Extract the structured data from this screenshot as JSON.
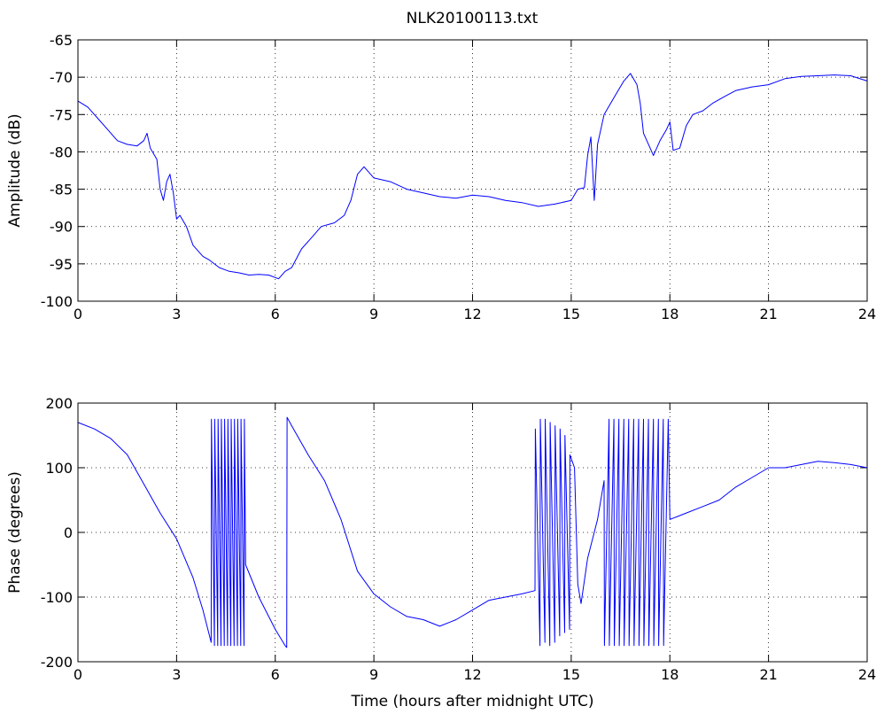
{
  "figure": {
    "title": "NLK20100113.txt",
    "line_color": "#0000ff"
  },
  "chart_data": [
    {
      "type": "line",
      "title": "NLK20100113.txt",
      "xlabel": "",
      "ylabel": "Amplitude (dB)",
      "xlim": [
        0,
        24
      ],
      "ylim": [
        -100,
        -65
      ],
      "xticks": [
        0,
        3,
        6,
        9,
        12,
        15,
        18,
        21,
        24
      ],
      "yticks": [
        -100,
        -95,
        -90,
        -85,
        -80,
        -75,
        -70,
        -65
      ],
      "grid": true,
      "color": "#0000ff",
      "series": [
        {
          "x": [
            0,
            0.3,
            0.6,
            0.9,
            1.2,
            1.5,
            1.8,
            2.0,
            2.1,
            2.2,
            2.4,
            2.5,
            2.6,
            2.7,
            2.8,
            2.9,
            3.0,
            3.1,
            3.3,
            3.5,
            3.8,
            4.0,
            4.3,
            4.6,
            4.9,
            5.2,
            5.5,
            5.8,
            6.1,
            6.3,
            6.5,
            6.8,
            7.1,
            7.4,
            7.8,
            8.1,
            8.3,
            8.5,
            8.7,
            9.0,
            9.5,
            10.0,
            10.5,
            11.0,
            11.5,
            12.0,
            12.5,
            13.0,
            13.5,
            14.0,
            14.5,
            15.0,
            15.2,
            15.4,
            15.5,
            15.6,
            15.7,
            15.8,
            16.0,
            16.2,
            16.4,
            16.6,
            16.8,
            17.0,
            17.1,
            17.2,
            17.4,
            17.5,
            17.7,
            17.9,
            18.0,
            18.1,
            18.3,
            18.5,
            18.7,
            19.0,
            19.3,
            19.7,
            20.0,
            20.5,
            21.0,
            21.5,
            22.0,
            22.5,
            23.0,
            23.5,
            24.0
          ],
          "y": [
            -73.2,
            -74.0,
            -75.5,
            -77.0,
            -78.5,
            -79.0,
            -79.2,
            -78.5,
            -77.5,
            -79.5,
            -81.0,
            -85.0,
            -86.5,
            -84.0,
            -83.0,
            -85.5,
            -89.0,
            -88.5,
            -90.0,
            -92.5,
            -94.0,
            -94.5,
            -95.5,
            -96.0,
            -96.2,
            -96.5,
            -96.4,
            -96.5,
            -97.0,
            -96.0,
            -95.5,
            -93.0,
            -91.5,
            -90.0,
            -89.5,
            -88.5,
            -86.5,
            -83.0,
            -82.0,
            -83.5,
            -84.0,
            -85.0,
            -85.5,
            -86.0,
            -86.2,
            -85.8,
            -86.0,
            -86.5,
            -86.8,
            -87.3,
            -87.0,
            -86.5,
            -85.0,
            -84.8,
            -80.5,
            -78.0,
            -86.5,
            -79.0,
            -75.0,
            -73.5,
            -72.0,
            -70.5,
            -69.5,
            -71.0,
            -73.5,
            -77.5,
            -79.5,
            -80.5,
            -78.5,
            -77.0,
            -76.0,
            -79.8,
            -79.5,
            -76.5,
            -75.0,
            -74.5,
            -73.5,
            -72.5,
            -71.8,
            -71.3,
            -71.0,
            -70.2,
            -69.9,
            -69.8,
            -69.7,
            -69.8,
            -70.5
          ]
        }
      ]
    },
    {
      "type": "line",
      "title": "",
      "xlabel": "Time (hours after midnight UTC)",
      "ylabel": "Phase (degrees)",
      "xlim": [
        0,
        24
      ],
      "ylim": [
        -200,
        200
      ],
      "xticks": [
        0,
        3,
        6,
        9,
        12,
        15,
        18,
        21,
        24
      ],
      "yticks": [
        -200,
        -100,
        0,
        100,
        200
      ],
      "grid": true,
      "color": "#0000ff",
      "series": [
        {
          "x": [
            0,
            0.5,
            1.0,
            1.5,
            2.0,
            2.5,
            3.0,
            3.5,
            3.8,
            4.05,
            4.06,
            4.15,
            4.16,
            4.25,
            4.26,
            4.35,
            4.36,
            4.45,
            4.46,
            4.55,
            4.56,
            4.65,
            4.66,
            4.75,
            4.76,
            4.85,
            4.86,
            4.95,
            4.96,
            5.05,
            5.06,
            5.1,
            5.5,
            6.0,
            6.3,
            6.35,
            6.36,
            6.5,
            7.0,
            7.5,
            8.0,
            8.5,
            9.0,
            9.5,
            10.0,
            10.5,
            11.0,
            11.5,
            12.0,
            12.5,
            13.0,
            13.5,
            13.9,
            13.91,
            14.05,
            14.06,
            14.2,
            14.21,
            14.35,
            14.36,
            14.5,
            14.51,
            14.65,
            14.66,
            14.8,
            14.81,
            14.95,
            14.96,
            15.1,
            15.2,
            15.3,
            15.5,
            15.8,
            16.0,
            16.01,
            16.15,
            16.16,
            16.3,
            16.31,
            16.45,
            16.46,
            16.6,
            16.61,
            16.75,
            16.76,
            16.9,
            16.91,
            17.05,
            17.06,
            17.2,
            17.21,
            17.35,
            17.36,
            17.5,
            17.51,
            17.65,
            17.66,
            17.8,
            17.81,
            17.95,
            18.0,
            18.5,
            19.0,
            19.5,
            20.0,
            20.5,
            21.0,
            21.5,
            22.0,
            22.5,
            23.0,
            23.5,
            24.0
          ],
          "y": [
            170,
            160,
            145,
            120,
            75,
            30,
            -10,
            -70,
            -120,
            -170,
            175,
            -175,
            175,
            -175,
            175,
            -175,
            175,
            -175,
            175,
            -175,
            175,
            -175,
            175,
            -175,
            175,
            -175,
            175,
            -175,
            175,
            -175,
            175,
            -50,
            -100,
            -150,
            -175,
            -178,
            178,
            165,
            120,
            80,
            20,
            -60,
            -95,
            -115,
            -130,
            -135,
            -145,
            -135,
            -120,
            -105,
            -100,
            -95,
            -90,
            160,
            -175,
            175,
            -170,
            175,
            -175,
            170,
            -170,
            165,
            -160,
            160,
            -155,
            150,
            -150,
            120,
            100,
            -80,
            -110,
            -40,
            20,
            80,
            -175,
            175,
            -175,
            175,
            -175,
            175,
            -175,
            175,
            -175,
            175,
            -175,
            175,
            -175,
            175,
            -175,
            175,
            -175,
            175,
            -175,
            175,
            -175,
            175,
            -175,
            175,
            -175,
            175,
            20,
            30,
            40,
            50,
            70,
            85,
            100,
            100,
            105,
            110,
            108,
            105,
            100
          ]
        }
      ]
    }
  ]
}
